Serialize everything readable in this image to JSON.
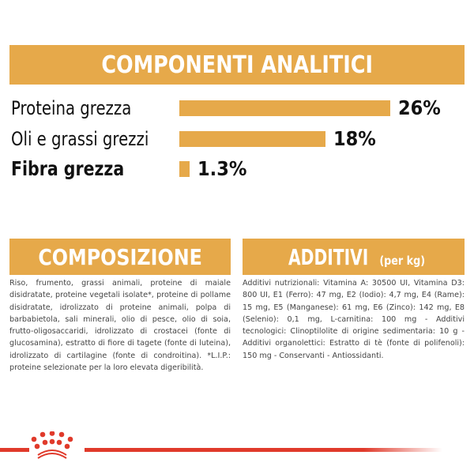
{
  "analytic": {
    "title": "COMPONENTI ANALITICI",
    "items": [
      {
        "label": "Proteina grezza",
        "value": "26%",
        "percent": 26
      },
      {
        "label": "Oli e grassi grezzi",
        "value": "18%",
        "percent": 18
      },
      {
        "label": "Fibra grezza",
        "value": "1.3%",
        "percent": 1.3
      }
    ]
  },
  "composition": {
    "title": "COMPOSIZIONE",
    "text": "Riso, frumento, grassi animali, proteine di maiale disidratate, proteine vegetali isolate*, proteine di pollame disidratate, idrolizzato di proteine animali, polpa di barbabietola, sali minerali, olio di pesce, olio di soia, frutto-oligosaccaridi, idrolizzato di crostacei (fonte di glucosamina), estratto di fiore di tagete (fonte di luteina), idrolizzato di cartilagine (fonte di condroitina). *L.I.P.: proteine selezionate per la loro elevata digeribilità."
  },
  "additives": {
    "title": "ADDITIVI",
    "unit": "(per kg)",
    "text": "Additivi nutrizionali: Vitamina A: 30500 UI, Vitamina D3: 800 UI, E1 (Ferro): 47 mg, E2 (Iodio): 4,7 mg, E4 (Rame): 15 mg, E5 (Manganese): 61 mg, E6 (Zinco): 142 mg, E8 (Selenio): 0,1 mg, L-carnitina: 100 mg - Additivi tecnologici: Clinoptilolite di origine sedimentaria: 10 g - Additivi organolettici: Estratto di tè (fonte di polifenoli): 150 mg - Conservanti - Antiossidanti."
  },
  "colors": {
    "accent": "#e6a94a",
    "brand_red": "#e03a2b"
  },
  "logo": {
    "icon": "royal-canin-crown-icon"
  }
}
